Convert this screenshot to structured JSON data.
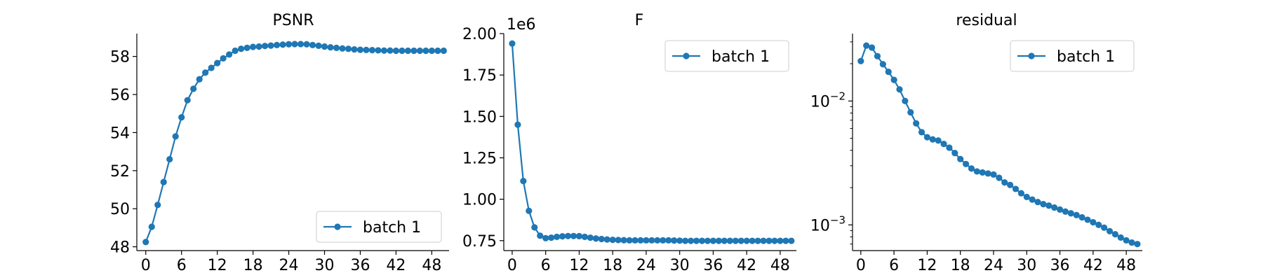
{
  "chart_data": [
    {
      "type": "line",
      "title": "PSNR",
      "xlabel": "",
      "ylabel": "",
      "xlim": [
        -1.5,
        50.9
      ],
      "ylim": [
        47.8,
        59.2
      ],
      "yscale": "linear",
      "xticks": [
        0,
        6,
        12,
        18,
        24,
        30,
        36,
        42,
        48
      ],
      "yticks": [
        48,
        50,
        52,
        54,
        56,
        58
      ],
      "ytick_labels": [
        "48",
        "50",
        "52",
        "54",
        "56",
        "58"
      ],
      "offset_label": "",
      "legend": {
        "placement": "bottom-right",
        "entries": [
          "batch 1"
        ]
      },
      "grid": false,
      "color": "#1f77b4",
      "series": [
        {
          "name": "batch 1",
          "x": [
            0,
            1,
            2,
            3,
            4,
            5,
            6,
            7,
            8,
            9,
            10,
            11,
            12,
            13,
            14,
            15,
            16,
            17,
            18,
            19,
            20,
            21,
            22,
            23,
            24,
            25,
            26,
            27,
            28,
            29,
            30,
            31,
            32,
            33,
            34,
            35,
            36,
            37,
            38,
            39,
            40,
            41,
            42,
            43,
            44,
            45,
            46,
            47,
            48,
            49,
            50
          ],
          "y": [
            48.25,
            49.05,
            50.2,
            51.4,
            52.6,
            53.8,
            54.8,
            55.7,
            56.3,
            56.8,
            57.15,
            57.4,
            57.65,
            57.9,
            58.1,
            58.3,
            58.4,
            58.45,
            58.5,
            58.52,
            58.55,
            58.57,
            58.6,
            58.62,
            58.64,
            58.65,
            58.65,
            58.64,
            58.6,
            58.56,
            58.52,
            58.48,
            58.45,
            58.42,
            58.4,
            58.37,
            58.35,
            58.34,
            58.33,
            58.32,
            58.31,
            58.31,
            58.3,
            58.3,
            58.3,
            58.3,
            58.3,
            58.3,
            58.3,
            58.3,
            58.3
          ]
        }
      ]
    },
    {
      "type": "line",
      "title": "F",
      "xlabel": "",
      "ylabel": "",
      "xlim": [
        -1.5,
        50.9
      ],
      "ylim": [
        690000,
        2000000
      ],
      "yscale": "linear",
      "xticks": [
        0,
        6,
        12,
        18,
        24,
        30,
        36,
        42,
        48
      ],
      "yticks": [
        750000,
        1000000,
        1250000,
        1500000,
        1750000,
        2000000
      ],
      "ytick_labels": [
        "0.75",
        "1.00",
        "1.25",
        "1.50",
        "1.75",
        "2.00"
      ],
      "offset_label": "1e6",
      "legend": {
        "placement": "top-right",
        "entries": [
          "batch 1"
        ]
      },
      "grid": false,
      "color": "#1f77b4",
      "series": [
        {
          "name": "batch 1",
          "x": [
            0,
            1,
            2,
            3,
            4,
            5,
            6,
            7,
            8,
            9,
            10,
            11,
            12,
            13,
            14,
            15,
            16,
            17,
            18,
            19,
            20,
            21,
            22,
            23,
            24,
            25,
            26,
            27,
            28,
            29,
            30,
            31,
            32,
            33,
            34,
            35,
            36,
            37,
            38,
            39,
            40,
            41,
            42,
            43,
            44,
            45,
            46,
            47,
            48,
            49,
            50
          ],
          "y": [
            1940000,
            1450000,
            1110000,
            930000,
            830000,
            780000,
            765000,
            768000,
            773000,
            776000,
            778000,
            778000,
            777000,
            773000,
            768000,
            763000,
            760000,
            757000,
            755000,
            754000,
            753000,
            752000,
            752000,
            752000,
            752000,
            752000,
            752000,
            752000,
            752000,
            751000,
            750000,
            749000,
            749000,
            749000,
            749000,
            749000,
            749000,
            749000,
            749000,
            749000,
            749000,
            749000,
            749000,
            749000,
            749000,
            749000,
            749000,
            749000,
            749000,
            749000,
            749000
          ]
        }
      ]
    },
    {
      "type": "line",
      "title": "residual",
      "xlabel": "",
      "ylabel": "",
      "xlim": [
        -1.5,
        50.9
      ],
      "ylim": [
        0.00062,
        0.035
      ],
      "yscale": "log",
      "xticks": [
        0,
        6,
        12,
        18,
        24,
        30,
        36,
        42,
        48
      ],
      "major_yticks": [
        0.01,
        0.001
      ],
      "ytick_labels": [
        {
          "base": "10",
          "exp": "−2"
        },
        {
          "base": "10",
          "exp": "−3"
        }
      ],
      "offset_label": "",
      "legend": {
        "placement": "top-right",
        "entries": [
          "batch 1"
        ]
      },
      "grid": false,
      "color": "#1f77b4",
      "series": [
        {
          "name": "batch 1",
          "x": [
            0,
            1,
            2,
            3,
            4,
            5,
            6,
            7,
            8,
            9,
            10,
            11,
            12,
            13,
            14,
            15,
            16,
            17,
            18,
            19,
            20,
            21,
            22,
            23,
            24,
            25,
            26,
            27,
            28,
            29,
            30,
            31,
            32,
            33,
            34,
            35,
            36,
            37,
            38,
            39,
            40,
            41,
            42,
            43,
            44,
            45,
            46,
            47,
            48,
            49,
            50
          ],
          "y": [
            0.021,
            0.028,
            0.027,
            0.023,
            0.0198,
            0.0172,
            0.0148,
            0.0124,
            0.01,
            0.0081,
            0.0066,
            0.0056,
            0.0051,
            0.0049,
            0.0048,
            0.0045,
            0.0042,
            0.0038,
            0.0034,
            0.0031,
            0.00285,
            0.0027,
            0.00265,
            0.0026,
            0.00255,
            0.0024,
            0.0022,
            0.0021,
            0.00195,
            0.0018,
            0.00168,
            0.0016,
            0.00153,
            0.00147,
            0.00143,
            0.00138,
            0.00133,
            0.00128,
            0.00124,
            0.0012,
            0.00115,
            0.0011,
            0.00105,
            0.001,
            0.00095,
            0.00089,
            0.00084,
            0.00079,
            0.00075,
            0.00072,
            0.0007
          ]
        }
      ]
    }
  ]
}
